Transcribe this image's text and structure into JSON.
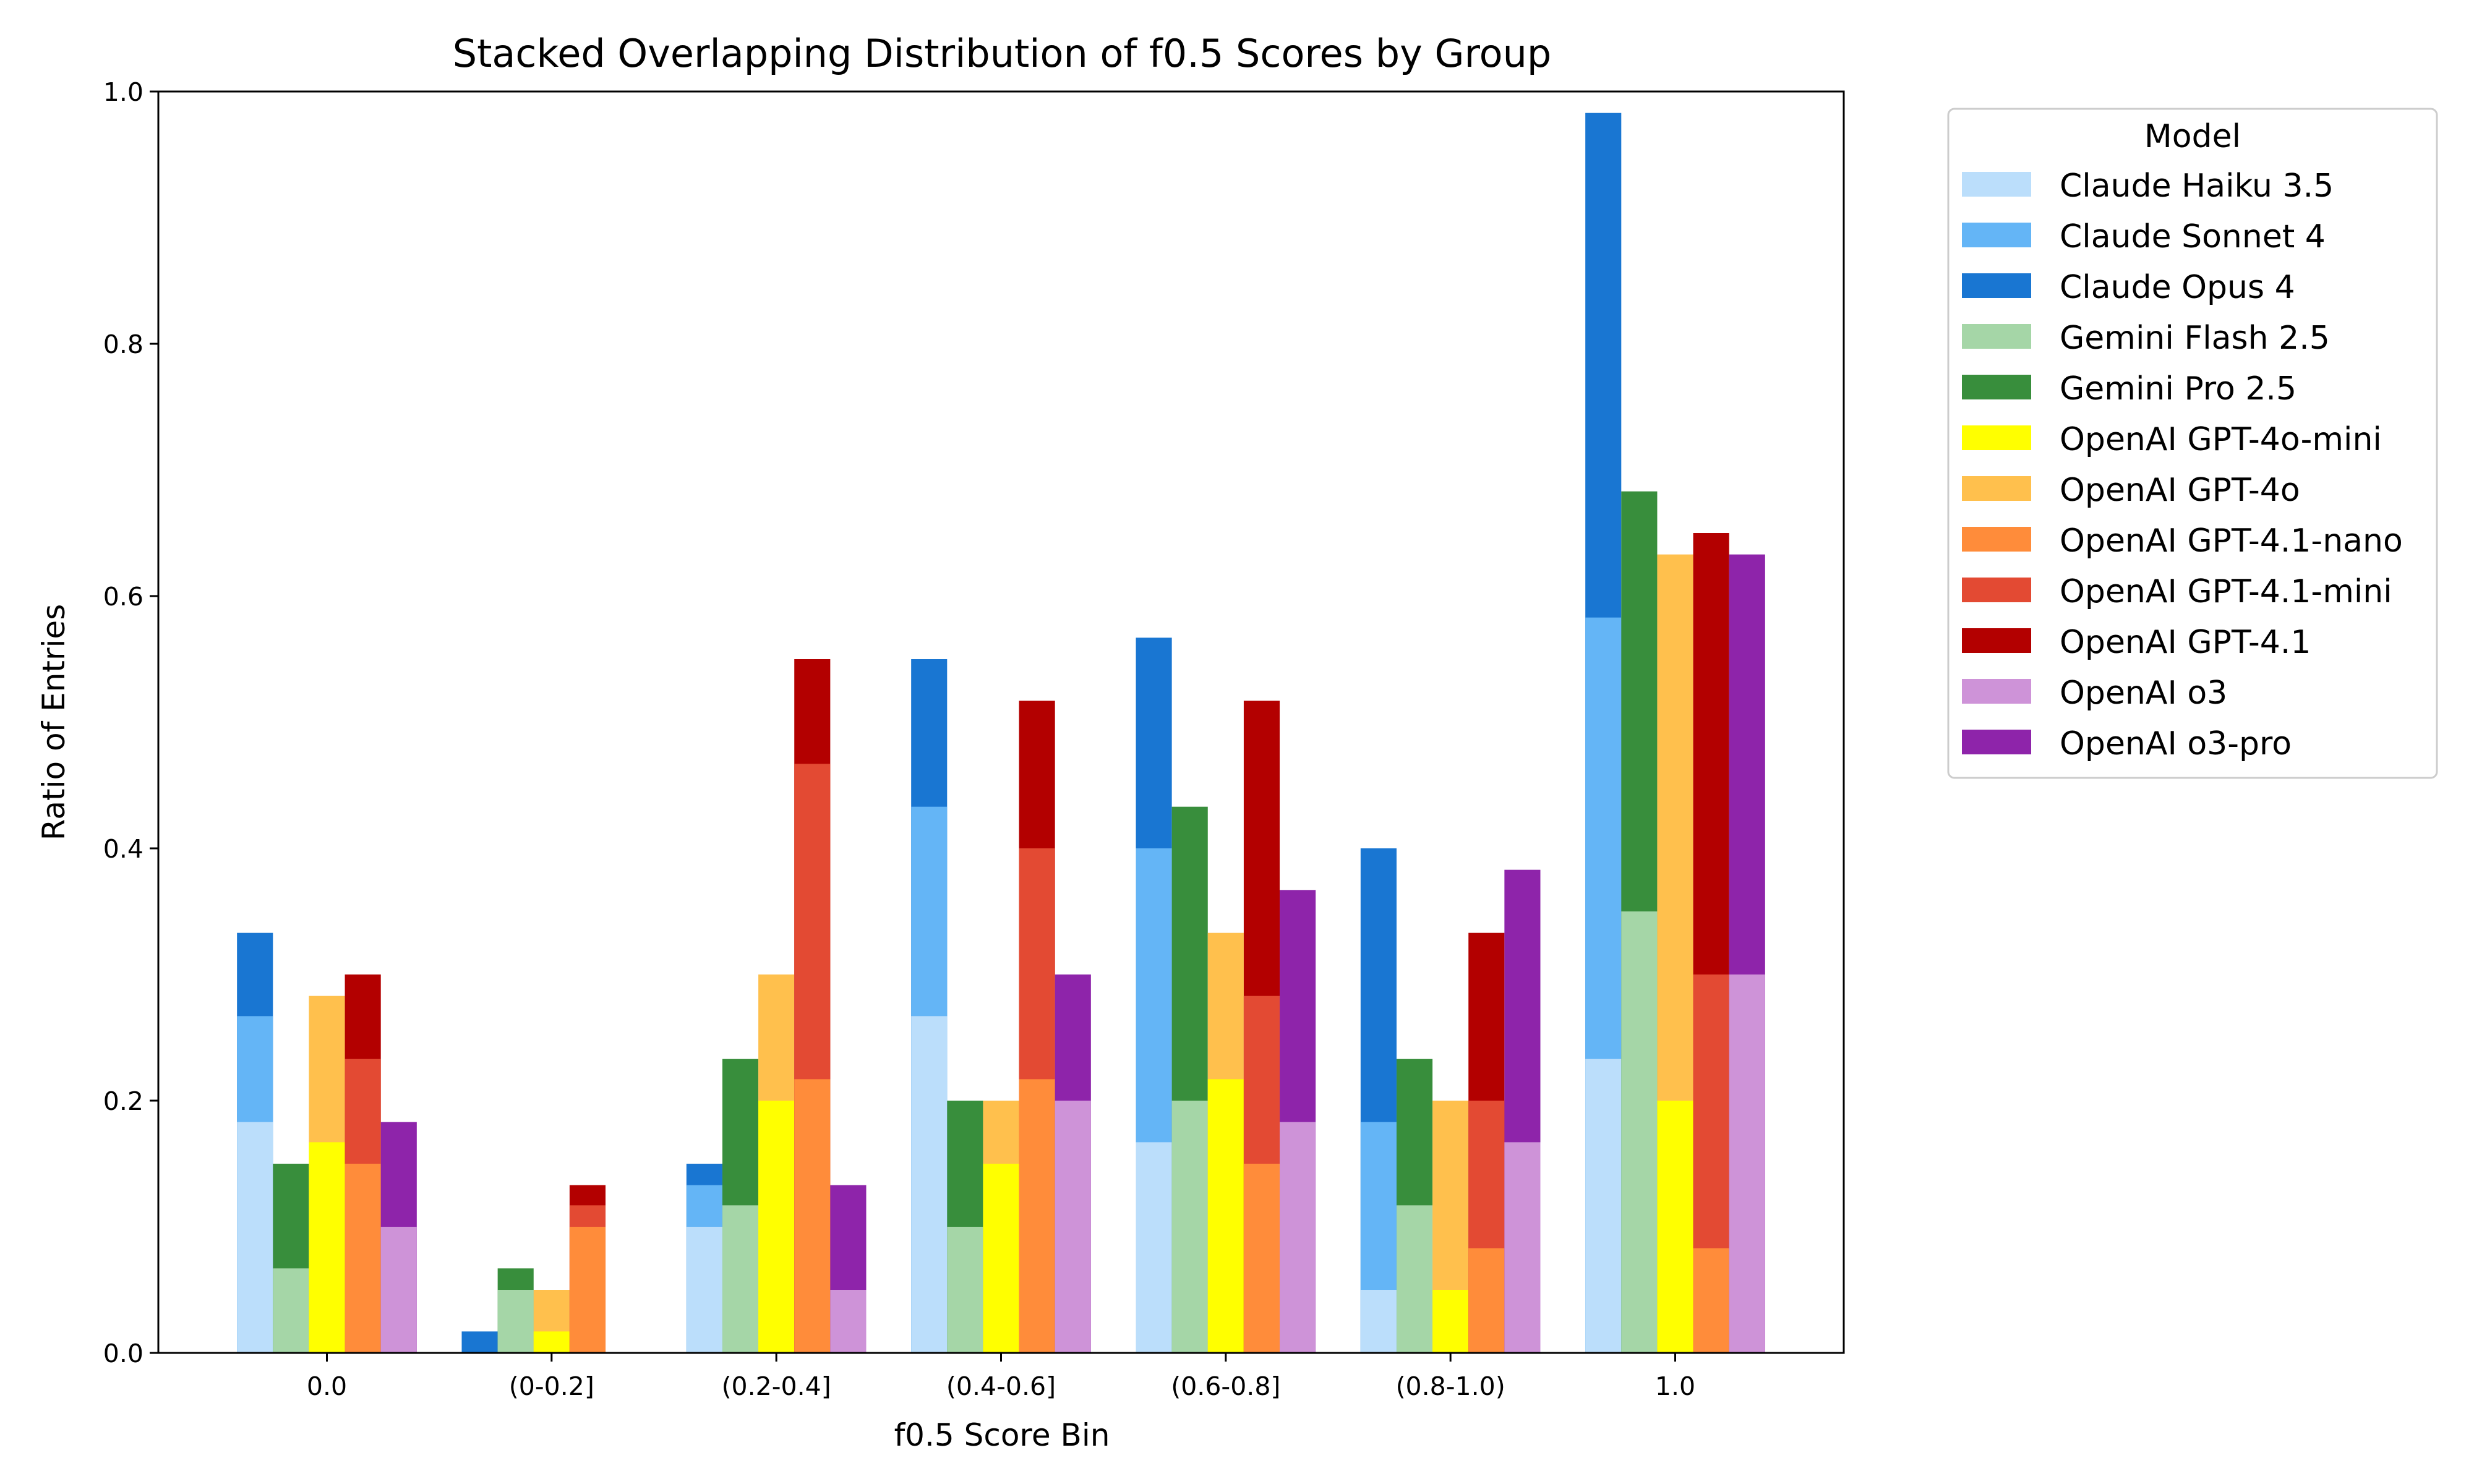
{
  "chart_data": {
    "type": "bar",
    "title": "Stacked Overlapping Distribution of f0.5 Scores by Group",
    "xlabel": "f0.5 Score Bin",
    "ylabel": "Ratio of Entries",
    "ylim": [
      0,
      1.0
    ],
    "yticks": [
      "0.0",
      "0.2",
      "0.4",
      "0.6",
      "0.8",
      "1.0"
    ],
    "categories": [
      "0.0",
      "(0-0.2]",
      "(0.2-0.4]",
      "(0.4-0.6]",
      "(0.6-0.8]",
      "(0.8-1.0)",
      "1.0"
    ],
    "grid": false,
    "legend": {
      "title": "Model",
      "placement": "outside-right-top"
    },
    "groups": [
      {
        "name": "Claude",
        "series": [
          {
            "name": "Claude Haiku 3.5",
            "color": "#bbdefb",
            "values": [
              0.183,
              0.0,
              0.1,
              0.267,
              0.167,
              0.05,
              0.233
            ]
          },
          {
            "name": "Claude Sonnet 4",
            "color": "#64b5f6",
            "values": [
              0.267,
              0.0,
              0.133,
              0.433,
              0.4,
              0.183,
              0.583
            ]
          },
          {
            "name": "Claude Opus 4",
            "color": "#1976d2",
            "values": [
              0.333,
              0.017,
              0.15,
              0.55,
              0.567,
              0.4,
              0.983
            ]
          }
        ]
      },
      {
        "name": "Gemini",
        "series": [
          {
            "name": "Gemini Flash 2.5",
            "color": "#a5d6a7",
            "values": [
              0.067,
              0.05,
              0.117,
              0.1,
              0.2,
              0.117,
              0.35
            ]
          },
          {
            "name": "Gemini Pro 2.5",
            "color": "#388e3c",
            "values": [
              0.15,
              0.067,
              0.233,
              0.2,
              0.433,
              0.233,
              0.683
            ]
          }
        ]
      },
      {
        "name": "OpenAI GPT-4o",
        "series": [
          {
            "name": "OpenAI GPT-4o-mini",
            "color": "#ffff00",
            "values": [
              0.167,
              0.017,
              0.2,
              0.15,
              0.217,
              0.05,
              0.2
            ]
          },
          {
            "name": "OpenAI GPT-4o",
            "color": "#ffc04d",
            "values": [
              0.283,
              0.05,
              0.3,
              0.2,
              0.333,
              0.2,
              0.633
            ]
          }
        ]
      },
      {
        "name": "OpenAI GPT-4.1",
        "series": [
          {
            "name": "OpenAI GPT-4.1-nano",
            "color": "#ff8c3a",
            "values": [
              0.15,
              0.1,
              0.217,
              0.217,
              0.15,
              0.083,
              0.083
            ]
          },
          {
            "name": "OpenAI GPT-4.1-mini",
            "color": "#e34a33",
            "values": [
              0.233,
              0.117,
              0.467,
              0.4,
              0.283,
              0.2,
              0.3
            ]
          },
          {
            "name": "OpenAI GPT-4.1",
            "color": "#b30000",
            "values": [
              0.3,
              0.133,
              0.55,
              0.517,
              0.517,
              0.333,
              0.65
            ]
          }
        ]
      },
      {
        "name": "OpenAI o3",
        "series": [
          {
            "name": "OpenAI o3",
            "color": "#ce93d8",
            "values": [
              0.1,
              0.0,
              0.05,
              0.2,
              0.183,
              0.167,
              0.3
            ]
          },
          {
            "name": "OpenAI o3-pro",
            "color": "#8e24aa",
            "values": [
              0.183,
              0.0,
              0.133,
              0.3,
              0.367,
              0.383,
              0.633
            ]
          }
        ]
      }
    ]
  }
}
